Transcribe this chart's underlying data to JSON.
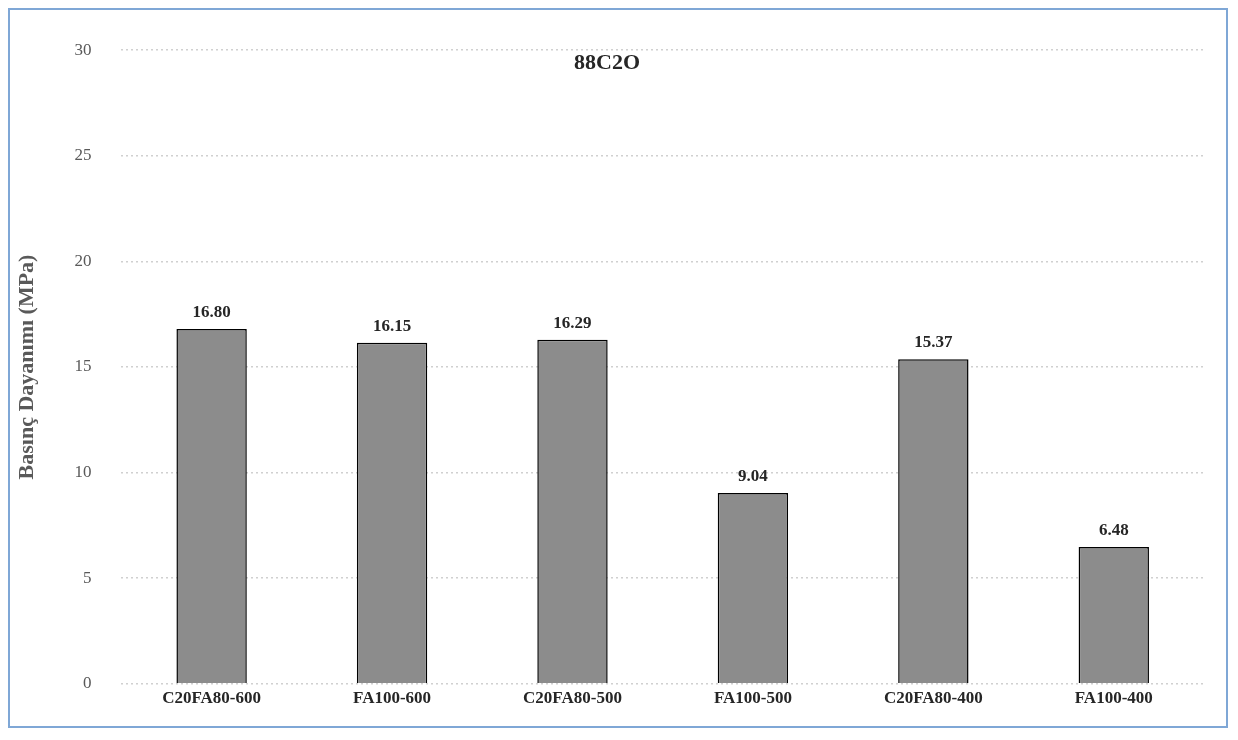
{
  "chart_data": {
    "type": "bar",
    "title": "88C2O",
    "ylabel": "Basınç Dayanımı (MPa)",
    "categories": [
      "C20FA80-600",
      "FA100-600",
      "C20FA80-500",
      "FA100-500",
      "C20FA80-400",
      "FA100-400"
    ],
    "values": [
      16.8,
      16.15,
      16.29,
      9.04,
      15.37,
      6.48
    ],
    "value_labels": [
      "16.80",
      "16.15",
      "16.29",
      "9.04",
      "15.37",
      "6.48"
    ],
    "color": "#8c8c8c",
    "ylim": [
      0,
      30
    ],
    "yticks": [
      0,
      5,
      10,
      15,
      20,
      25,
      30
    ],
    "grid": "y",
    "legend": false
  }
}
